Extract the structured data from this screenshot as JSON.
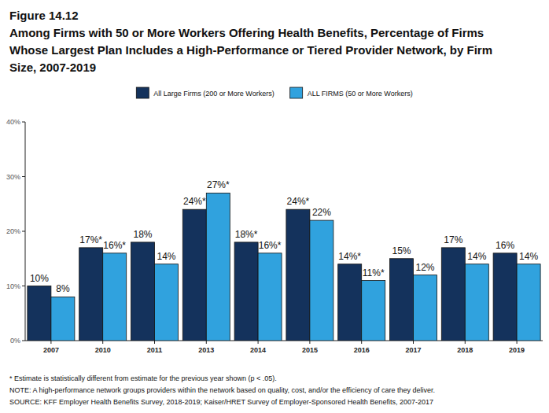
{
  "chart_data": {
    "type": "bar",
    "title": "Figure 14.12",
    "subtitle": "Among Firms with 50 or More Workers Offering Health Benefits, Percentage of Firms Whose Largest Plan Includes a High-Performance or Tiered Provider Network, by Firm Size, 2007-2019",
    "categories": [
      "2007",
      "2010",
      "2011",
      "2013",
      "2014",
      "2015",
      "2016",
      "2017",
      "2018",
      "2019"
    ],
    "series": [
      {
        "name": "All Large Firms (200 or More Workers)",
        "color": "#14325c",
        "values": [
          10,
          17,
          18,
          24,
          18,
          24,
          14,
          15,
          17,
          16
        ],
        "value_labels": [
          "10%",
          "17%*",
          "18%",
          "24%*",
          "18%*",
          "24%*",
          "14%*",
          "15%",
          "17%",
          "16%"
        ]
      },
      {
        "name": "ALL FIRMS (50 or More Workers)",
        "color": "#30a2de",
        "values": [
          8,
          16,
          14,
          27,
          16,
          22,
          11,
          12,
          14,
          14
        ],
        "value_labels": [
          "8%",
          "16%*",
          "14%",
          "27%*",
          "16%*",
          "22%",
          "11%*",
          "12%",
          "14%",
          "14%"
        ]
      }
    ],
    "ylim": [
      0,
      40
    ],
    "yticks": [
      {
        "value": 0,
        "label": "0%"
      },
      {
        "value": 10,
        "label": "10%"
      },
      {
        "value": 20,
        "label": "20%"
      },
      {
        "value": 30,
        "label": "30%"
      },
      {
        "value": 40,
        "label": "40%"
      }
    ],
    "grid": false,
    "legend": "top",
    "data_labels": true,
    "annotations": [
      "* Estimate is statistically different from estimate for the previous year shown (p < .05).",
      "NOTE: A high-performance network groups providers within the network based on quality, cost, and/or the efficiency of care they deliver.",
      "SOURCE: KFF Employer Health Benefits Survey, 2018-2019; Kaiser/HRET Survey of Employer-Sponsored Health Benefits, 2007-2017"
    ]
  }
}
